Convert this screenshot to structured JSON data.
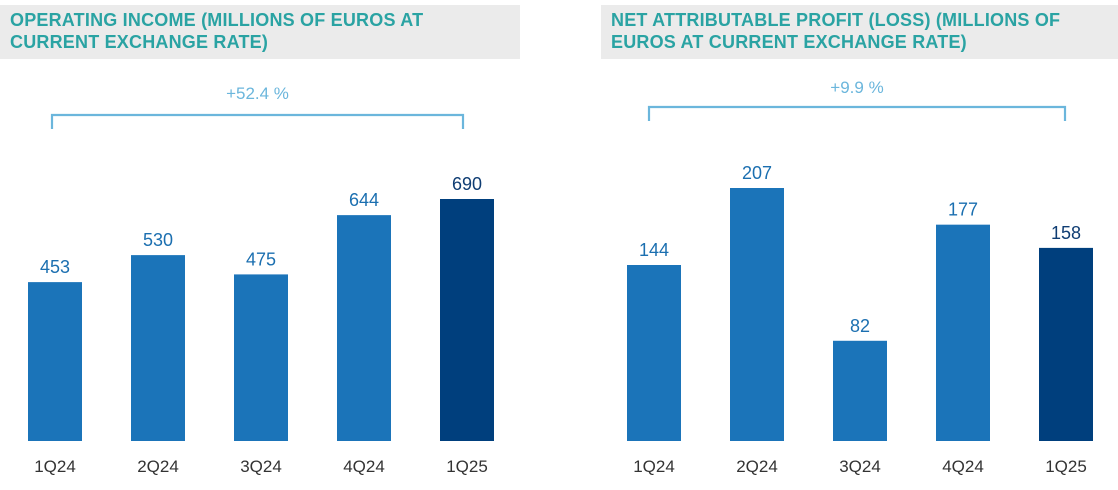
{
  "colors": {
    "bar": "#1b74b9",
    "bar_highlight": "#003f7d",
    "bracket": "#6bb6dc",
    "title": "#2aa3a3",
    "title_bg": "#ebebeb"
  },
  "chart_data": [
    {
      "type": "bar",
      "title": "OPERATING INCOME (MILLIONS OF EUROS AT CURRENT EXCHANGE RATE)",
      "title_lines": [
        "OPERATING INCOME (MILLIONS OF EUROS AT",
        "CURRENT EXCHANGE RATE)"
      ],
      "categories": [
        "1Q24",
        "2Q24",
        "3Q24",
        "4Q24",
        "1Q25"
      ],
      "values": [
        453,
        530,
        475,
        644,
        690
      ],
      "highlight_index": 4,
      "growth_label": "+52.4 %",
      "xlabel": "",
      "ylabel": "",
      "ylim": [
        0,
        690
      ]
    },
    {
      "type": "bar",
      "title": "NET ATTRIBUTABLE PROFIT (LOSS) (MILLIONS OF EUROS AT CURRENT EXCHANGE RATE)",
      "title_lines": [
        "NET ATTRIBUTABLE PROFIT (LOSS) (MILLIONS OF",
        "EUROS AT CURRENT EXCHANGE RATE)"
      ],
      "categories": [
        "1Q24",
        "2Q24",
        "3Q24",
        "4Q24",
        "1Q25"
      ],
      "values": [
        144,
        207,
        82,
        177,
        158
      ],
      "highlight_index": 4,
      "growth_label": "+9.9 %",
      "xlabel": "",
      "ylabel": "",
      "ylim": [
        0,
        207
      ]
    }
  ]
}
